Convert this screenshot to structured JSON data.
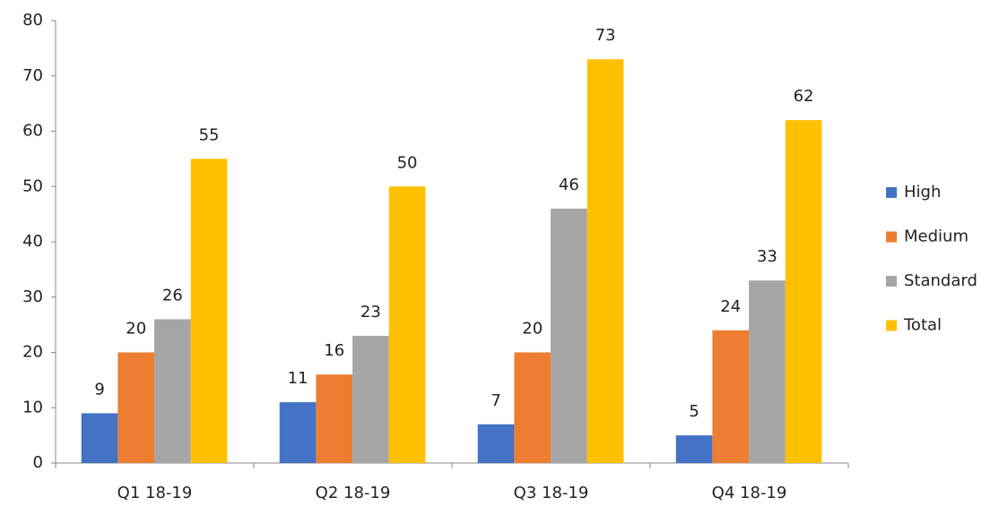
{
  "chart_data": {
    "type": "bar",
    "categories": [
      "Q1 18-19",
      "Q2 18-19",
      "Q3 18-19",
      "Q4 18-19"
    ],
    "series": [
      {
        "name": "High",
        "color": "#4472c4",
        "values": [
          9,
          11,
          7,
          5
        ]
      },
      {
        "name": "Medium",
        "color": "#ed7d31",
        "values": [
          20,
          16,
          20,
          24
        ]
      },
      {
        "name": "Standard",
        "color": "#a5a5a5",
        "values": [
          26,
          23,
          46,
          33
        ]
      },
      {
        "name": "Total",
        "color": "#ffc000",
        "values": [
          55,
          50,
          73,
          62
        ]
      }
    ],
    "ylim": [
      0,
      80
    ],
    "yticks": [
      0,
      10,
      20,
      30,
      40,
      50,
      60,
      70,
      80
    ],
    "legend": "right",
    "data_labels": true
  }
}
